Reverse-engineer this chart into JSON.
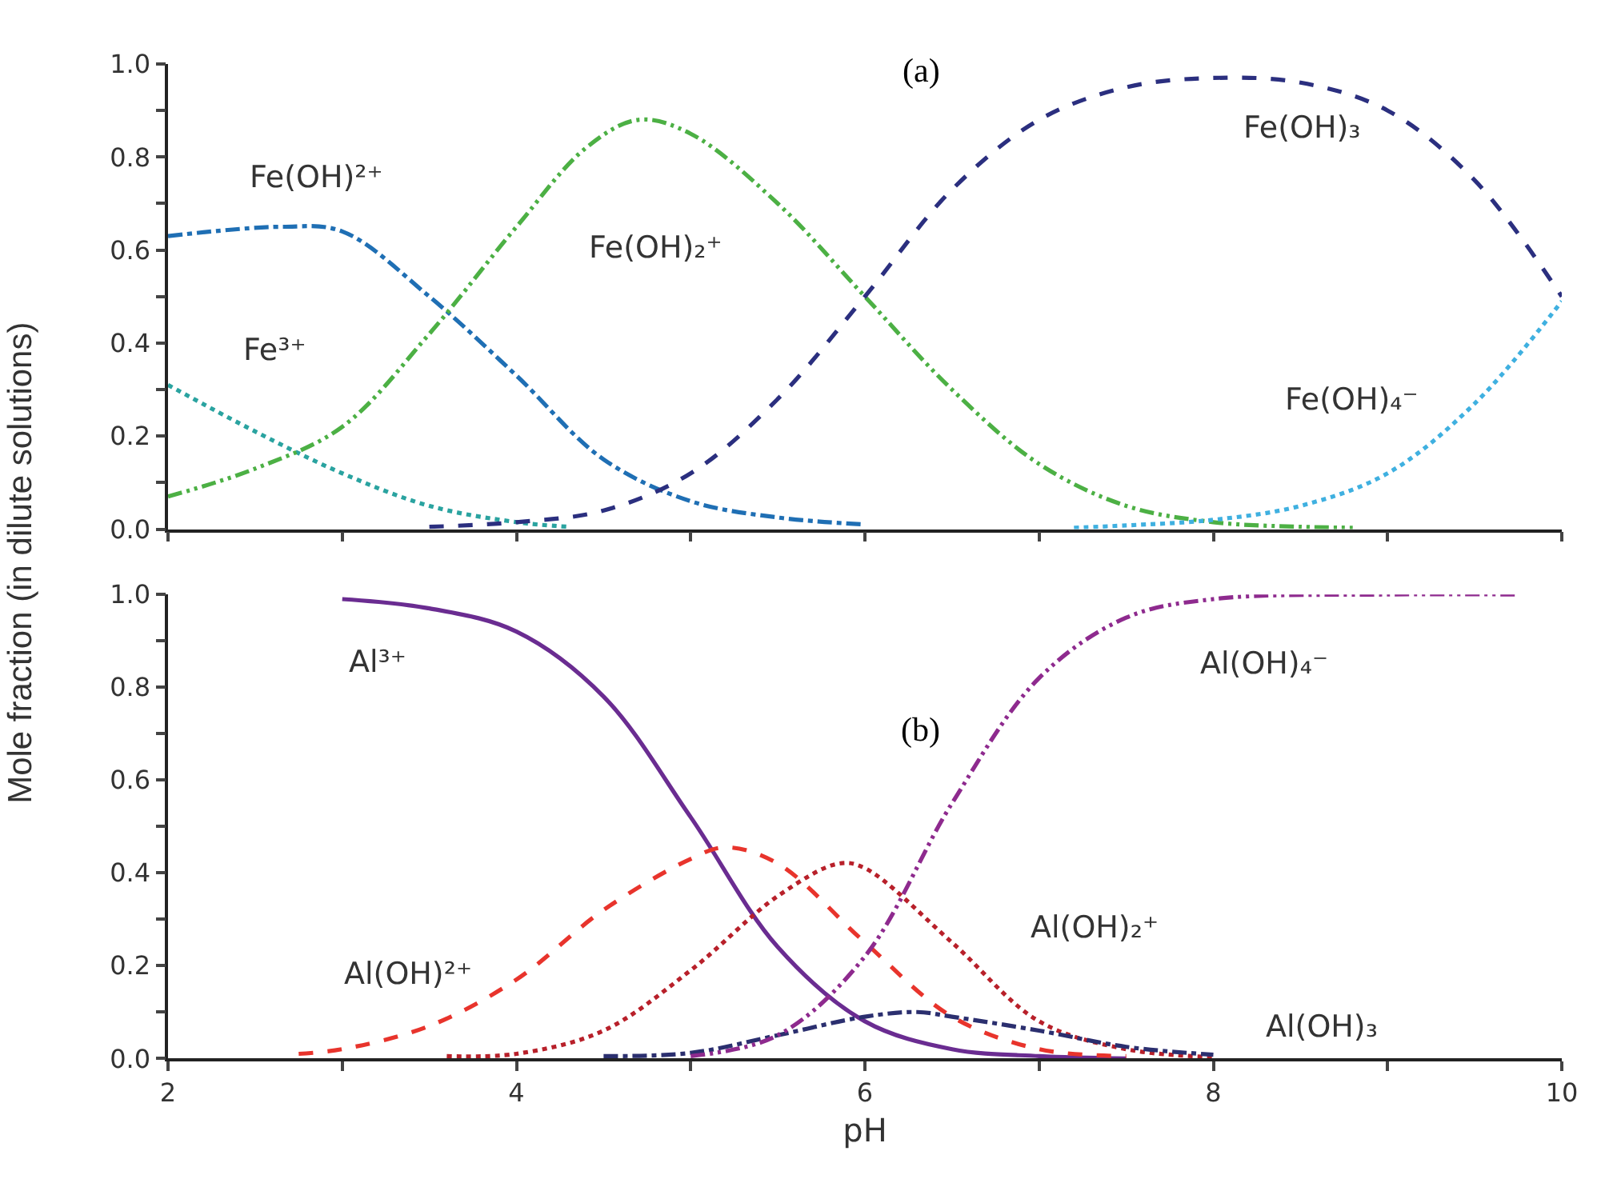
{
  "chart_data": [
    {
      "type": "line",
      "xlim": [
        2,
        10
      ],
      "ylim": [
        0,
        1
      ],
      "xticks": [
        2,
        {
          "value": 3,
          "label": null
        },
        4,
        {
          "value": 5,
          "label": null
        },
        6,
        {
          "value": 7,
          "label": null
        },
        8,
        {
          "value": 9,
          "label": null
        },
        10
      ],
      "yticks": [
        {
          "value": 0,
          "label": "0.0"
        },
        {
          "value": 0.1,
          "label": null
        },
        {
          "value": 0.2,
          "label": "0.2"
        },
        {
          "value": 0.3,
          "label": null
        },
        {
          "value": 0.4,
          "label": "0.4"
        },
        {
          "value": 0.5,
          "label": null
        },
        {
          "value": 0.6,
          "label": "0.6"
        },
        {
          "value": 0.7,
          "label": null
        },
        {
          "value": 0.8,
          "label": "0.8"
        },
        {
          "value": 0.9,
          "label": null
        },
        {
          "value": 1.0,
          "label": "1.0"
        }
      ],
      "tick_labels": "y",
      "legend": false,
      "annotations": [
        "(a)"
      ],
      "series": [
        {
          "name": "Fe(OH)²⁺",
          "color": "#1f6fb4",
          "line_style": "dashdot",
          "x": [
            2.0,
            2.65,
            3.0,
            3.5,
            4.0,
            4.5,
            5.0,
            5.5,
            6.0
          ],
          "values": [
            0.63,
            0.65,
            0.64,
            0.5,
            0.33,
            0.15,
            0.06,
            0.025,
            0.01
          ]
        },
        {
          "name": "Fe³⁺",
          "color": "#2aa3a0",
          "line_style": "dotted",
          "x": [
            2.0,
            2.5,
            3.0,
            3.5,
            4.0,
            4.3
          ],
          "values": [
            0.31,
            0.21,
            0.12,
            0.05,
            0.015,
            0.005
          ]
        },
        {
          "name": "Fe(OH)₂⁺",
          "color": "#4cb044",
          "line_style": "dashdotdot",
          "x": [
            2.0,
            2.5,
            3.0,
            3.5,
            4.0,
            4.4,
            4.7,
            5.0,
            5.5,
            6.0,
            6.5,
            7.0,
            7.5,
            8.0,
            8.5,
            8.8
          ],
          "values": [
            0.07,
            0.13,
            0.22,
            0.42,
            0.65,
            0.82,
            0.88,
            0.85,
            0.7,
            0.5,
            0.3,
            0.14,
            0.05,
            0.015,
            0.005,
            0.003
          ]
        },
        {
          "name": "Fe(OH)₃",
          "color": "#2b2f7f",
          "line_style": "dashed",
          "x": [
            3.5,
            4.0,
            4.5,
            5.0,
            5.5,
            6.0,
            6.5,
            7.0,
            7.5,
            8.0,
            8.5,
            9.0,
            9.5,
            10.0
          ],
          "values": [
            0.005,
            0.015,
            0.04,
            0.12,
            0.28,
            0.5,
            0.73,
            0.88,
            0.95,
            0.97,
            0.96,
            0.9,
            0.75,
            0.5
          ]
        },
        {
          "name": "Fe(OH)₄⁻",
          "color": "#3fb0e0",
          "line_style": "dotted",
          "x": [
            7.2,
            7.5,
            8.0,
            8.5,
            9.0,
            9.5,
            10.0
          ],
          "values": [
            0.003,
            0.008,
            0.02,
            0.05,
            0.12,
            0.27,
            0.49
          ]
        }
      ]
    },
    {
      "type": "line",
      "xlim": [
        2,
        10
      ],
      "ylim": [
        0,
        1
      ],
      "xlabel": "pH",
      "ylabel": "Mole fraction (in dilute solutions)",
      "xticks": [
        2,
        {
          "value": 3,
          "label": null
        },
        4,
        {
          "value": 5,
          "label": null
        },
        6,
        {
          "value": 7,
          "label": null
        },
        8,
        {
          "value": 9,
          "label": null
        },
        10
      ],
      "yticks": [
        {
          "value": 0,
          "label": "0.0"
        },
        {
          "value": 0.1,
          "label": null
        },
        {
          "value": 0.2,
          "label": "0.2"
        },
        {
          "value": 0.3,
          "label": null
        },
        {
          "value": 0.4,
          "label": "0.4"
        },
        {
          "value": 0.5,
          "label": null
        },
        {
          "value": 0.6,
          "label": "0.6"
        },
        {
          "value": 0.7,
          "label": null
        },
        {
          "value": 0.8,
          "label": "0.8"
        },
        {
          "value": 0.9,
          "label": null
        },
        {
          "value": 1.0,
          "label": "1.0"
        }
      ],
      "legend": false,
      "annotations": [
        "(b)"
      ],
      "series": [
        {
          "name": "Al³⁺",
          "color": "#6a2c91",
          "line_style": "solid",
          "x": [
            3.0,
            3.5,
            4.0,
            4.5,
            5.0,
            5.5,
            6.0,
            6.5,
            7.0,
            7.5
          ],
          "values": [
            0.99,
            0.97,
            0.92,
            0.78,
            0.52,
            0.24,
            0.08,
            0.02,
            0.005,
            0.0
          ]
        },
        {
          "name": "Al(OH)²⁺",
          "color": "#e8342c",
          "line_style": "dashed",
          "x": [
            2.75,
            3.0,
            3.5,
            4.0,
            4.5,
            5.0,
            5.2,
            5.5,
            6.0,
            6.5,
            7.0,
            7.5
          ],
          "values": [
            0.01,
            0.02,
            0.07,
            0.17,
            0.32,
            0.43,
            0.455,
            0.42,
            0.25,
            0.09,
            0.02,
            0.005
          ]
        },
        {
          "name": "Al(OH)₂⁺",
          "color": "#b8202a",
          "line_style": "dotted",
          "x": [
            3.6,
            4.0,
            4.5,
            5.0,
            5.5,
            5.85,
            6.0,
            6.5,
            7.0,
            7.5,
            8.0
          ],
          "values": [
            0.005,
            0.01,
            0.06,
            0.19,
            0.35,
            0.42,
            0.41,
            0.25,
            0.08,
            0.02,
            0.003
          ]
        },
        {
          "name": "Al(OH)₃",
          "color": "#2b2f6f",
          "line_style": "dashdot",
          "x": [
            4.5,
            5.0,
            5.5,
            6.0,
            6.3,
            6.5,
            7.0,
            7.5,
            8.0
          ],
          "values": [
            0.005,
            0.012,
            0.05,
            0.09,
            0.1,
            0.09,
            0.06,
            0.025,
            0.008
          ]
        },
        {
          "name": "Al(OH)₄⁻",
          "color": "#8e2a8e",
          "line_style": "dashdotdot",
          "x": [
            5.0,
            5.5,
            6.0,
            6.5,
            7.0,
            7.5,
            8.0,
            9.0,
            9.75
          ],
          "values": [
            0.005,
            0.05,
            0.22,
            0.55,
            0.82,
            0.95,
            0.99,
            1.0,
            1.0
          ]
        }
      ]
    }
  ]
}
